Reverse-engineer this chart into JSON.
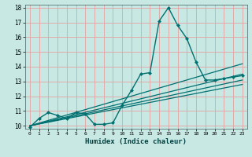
{
  "xlabel": "Humidex (Indice chaleur)",
  "bg_color": "#c8e8e4",
  "grid_color": "#e8a0a0",
  "line_color": "#007070",
  "xlim": [
    -0.5,
    23.5
  ],
  "ylim": [
    9.8,
    18.2
  ],
  "xticks": [
    0,
    1,
    2,
    3,
    4,
    5,
    6,
    7,
    8,
    9,
    10,
    11,
    12,
    13,
    14,
    15,
    16,
    17,
    18,
    19,
    20,
    21,
    22,
    23
  ],
  "yticks": [
    10,
    11,
    12,
    13,
    14,
    15,
    16,
    17,
    18
  ],
  "lines": [
    {
      "x": [
        0,
        1,
        2,
        3,
        4,
        5,
        6,
        7,
        8,
        9,
        10,
        11,
        12,
        13,
        14,
        15,
        16,
        17,
        18,
        19,
        20,
        21,
        22,
        23
      ],
      "y": [
        9.9,
        10.5,
        10.9,
        10.7,
        10.5,
        10.9,
        10.8,
        10.1,
        10.1,
        10.2,
        11.4,
        12.4,
        13.5,
        13.6,
        17.1,
        18.0,
        16.8,
        15.9,
        14.3,
        13.1,
        13.1,
        13.2,
        13.3,
        13.4
      ],
      "marker": "D",
      "lw": 1.0,
      "ms": 2.0
    },
    {
      "x": [
        0,
        23
      ],
      "y": [
        10.0,
        14.2
      ],
      "marker": null,
      "lw": 0.9,
      "ms": 0
    },
    {
      "x": [
        0,
        23
      ],
      "y": [
        10.0,
        13.5
      ],
      "marker": null,
      "lw": 0.9,
      "ms": 0
    },
    {
      "x": [
        0,
        23
      ],
      "y": [
        10.0,
        13.1
      ],
      "marker": null,
      "lw": 0.9,
      "ms": 0
    },
    {
      "x": [
        0,
        23
      ],
      "y": [
        10.0,
        12.8
      ],
      "marker": null,
      "lw": 0.9,
      "ms": 0
    }
  ]
}
